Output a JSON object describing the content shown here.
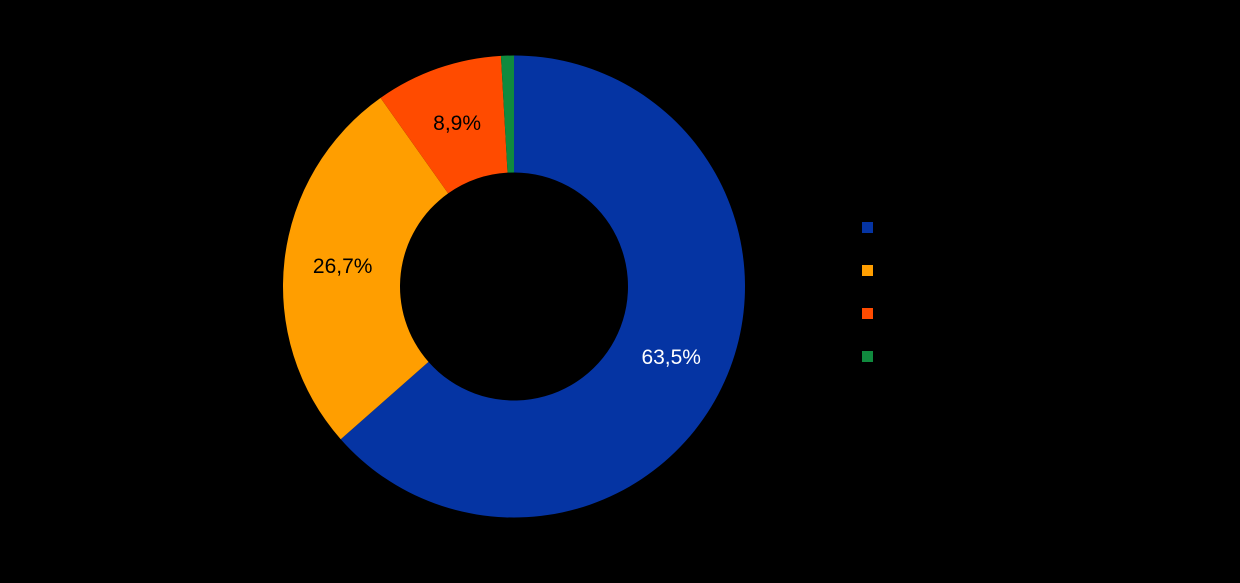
{
  "background_color": "#000000",
  "chart_data": {
    "type": "pie",
    "subtype": "donut",
    "title": "",
    "direction": "clockwise",
    "start_angle_deg": 0,
    "legend_position": "right",
    "legend_text_visible": false,
    "slices": [
      {
        "value": 63.5,
        "display": "63,5%",
        "color": "#0534A3",
        "label_text_color": "#FFFFFF"
      },
      {
        "value": 26.7,
        "display": "26,7%",
        "color": "#FF9E00",
        "label_text_color": "#000000"
      },
      {
        "value": 8.9,
        "display": "8,9%",
        "color": "#FF4B00",
        "label_text_color": "#000000"
      },
      {
        "value": 0.9,
        "display": "",
        "color": "#108A3E",
        "label_text_color": "#000000"
      }
    ]
  }
}
